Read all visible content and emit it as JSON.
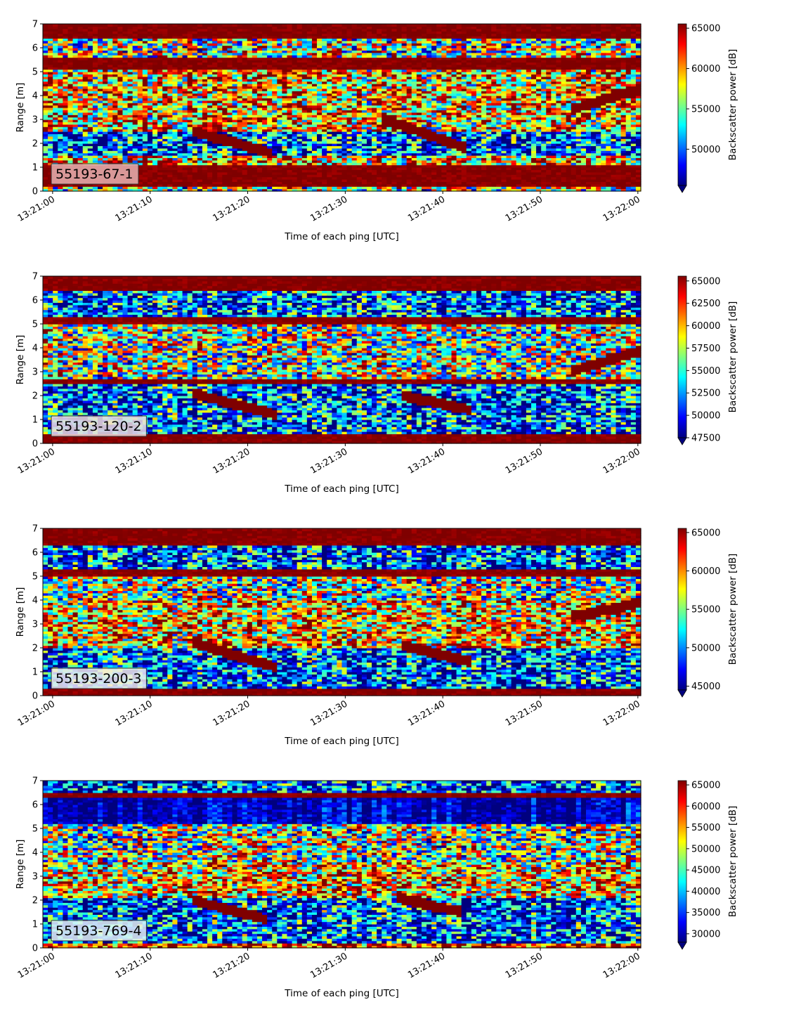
{
  "colorscale": {
    "name": "jet",
    "stops": [
      "#00007f",
      "#0000ff",
      "#007fff",
      "#00ffff",
      "#7fff7f",
      "#ffff00",
      "#ff7f00",
      "#ff0000",
      "#7f0000"
    ]
  },
  "inset_box_color": "#f0b4b4",
  "chart_data": [
    {
      "type": "heatmap",
      "label": "55193-67-1",
      "xlabel": "Time of each ping [UTC]",
      "ylabel": "Range [m]",
      "colorbar_label": "Backscatter power [dB]",
      "xticks": [
        "13:21:00",
        "13:21:10",
        "13:21:20",
        "13:21:30",
        "13:21:40",
        "13:21:50",
        "13:22:00"
      ],
      "x_range_seconds": [
        -1,
        60.3
      ],
      "yticks": [
        "0",
        "1",
        "2",
        "3",
        "4",
        "5",
        "6",
        "7"
      ],
      "ylim": [
        0,
        7
      ],
      "colorbar_ticks": [
        "50000",
        "55000",
        "60000",
        "65000"
      ],
      "clim": [
        45500,
        65535
      ],
      "inset_color": "#e8b3b3",
      "bands": [
        {
          "range": [
            0,
            0.22
          ],
          "level": "mid"
        },
        {
          "range": [
            0.22,
            1.1
          ],
          "level": "max"
        },
        {
          "range": [
            1.1,
            1.5
          ],
          "level": "mid-high"
        },
        {
          "range": [
            1.5,
            2.5
          ],
          "level": "low"
        },
        {
          "range": [
            2.5,
            5.1
          ],
          "level": "mid-high"
        },
        {
          "range": [
            5.1,
            5.6
          ],
          "level": "max"
        },
        {
          "range": [
            5.6,
            6.4
          ],
          "level": "mid"
        },
        {
          "range": [
            6.4,
            7
          ],
          "level": "max"
        }
      ],
      "tracks": [
        {
          "t": [
            14.5,
            22.5
          ],
          "range": [
            2.5,
            1.6
          ]
        },
        {
          "t": [
            33.5,
            42.5
          ],
          "range": [
            3.1,
            1.8
          ]
        },
        {
          "t": [
            53,
            60.3
          ],
          "range": [
            3.4,
            4.3
          ]
        }
      ]
    },
    {
      "type": "heatmap",
      "label": "55193-120-2",
      "xlabel": "Time of each ping [UTC]",
      "ylabel": "Range [m]",
      "colorbar_label": "Backscatter power [dB]",
      "xticks": [
        "13:21:00",
        "13:21:10",
        "13:21:20",
        "13:21:30",
        "13:21:40",
        "13:21:50",
        "13:22:00"
      ],
      "x_range_seconds": [
        -1,
        60.3
      ],
      "yticks": [
        "0",
        "1",
        "2",
        "3",
        "4",
        "5",
        "6",
        "7"
      ],
      "ylim": [
        0,
        7
      ],
      "colorbar_ticks": [
        "47500",
        "50000",
        "52500",
        "55000",
        "57500",
        "60000",
        "62500",
        "65000"
      ],
      "clim": [
        47500,
        65535
      ],
      "inset_color": "#eedede",
      "bands": [
        {
          "range": [
            0,
            0.4
          ],
          "level": "max"
        },
        {
          "range": [
            0.4,
            2.5
          ],
          "level": "low"
        },
        {
          "range": [
            2.5,
            2.75
          ],
          "level": "max"
        },
        {
          "range": [
            2.75,
            5.0
          ],
          "level": "mid"
        },
        {
          "range": [
            5.0,
            5.3
          ],
          "level": "max"
        },
        {
          "range": [
            5.3,
            6.4
          ],
          "level": "low"
        },
        {
          "range": [
            6.4,
            7
          ],
          "level": "max"
        }
      ],
      "tracks": [
        {
          "t": [
            14.5,
            23
          ],
          "range": [
            2.1,
            1.2
          ]
        },
        {
          "t": [
            36,
            43
          ],
          "range": [
            2.0,
            1.4
          ]
        },
        {
          "t": [
            53,
            60.3
          ],
          "range": [
            3.0,
            3.9
          ]
        }
      ]
    },
    {
      "type": "heatmap",
      "label": "55193-200-3",
      "xlabel": "Time of each ping [UTC]",
      "ylabel": "Range [m]",
      "colorbar_label": "Backscatter power [dB]",
      "xticks": [
        "13:21:00",
        "13:21:10",
        "13:21:20",
        "13:21:30",
        "13:21:40",
        "13:21:50",
        "13:22:00"
      ],
      "x_range_seconds": [
        -1,
        60.3
      ],
      "yticks": [
        "0",
        "1",
        "2",
        "3",
        "4",
        "5",
        "6",
        "7"
      ],
      "ylim": [
        0,
        7
      ],
      "colorbar_ticks": [
        "45000",
        "50000",
        "55000",
        "60000",
        "65000"
      ],
      "clim": [
        44500,
        65535
      ],
      "inset_color": "#f0ecec",
      "bands": [
        {
          "range": [
            0,
            0.3
          ],
          "level": "max"
        },
        {
          "range": [
            0.3,
            2.0
          ],
          "level": "low"
        },
        {
          "range": [
            2.0,
            4.0
          ],
          "level": "mid-high"
        },
        {
          "range": [
            4.0,
            5.0
          ],
          "level": "mid"
        },
        {
          "range": [
            5.0,
            5.3
          ],
          "level": "max"
        },
        {
          "range": [
            5.3,
            6.3
          ],
          "level": "low"
        },
        {
          "range": [
            6.3,
            7
          ],
          "level": "max"
        }
      ],
      "tracks": [
        {
          "t": [
            14.5,
            23
          ],
          "range": [
            2.2,
            1.2
          ]
        },
        {
          "t": [
            36,
            43
          ],
          "range": [
            2.1,
            1.4
          ]
        },
        {
          "t": [
            53,
            60.3
          ],
          "range": [
            3.3,
            3.9
          ]
        }
      ]
    },
    {
      "type": "heatmap",
      "label": "55193-769-4",
      "xlabel": "Time of each ping [UTC]",
      "ylabel": "Range [m]",
      "colorbar_label": "Backscatter power [dB]",
      "xticks": [
        "13:21:00",
        "13:21:10",
        "13:21:20",
        "13:21:30",
        "13:21:40",
        "13:21:50",
        "13:22:00"
      ],
      "x_range_seconds": [
        -1,
        60.3
      ],
      "yticks": [
        "0",
        "1",
        "2",
        "3",
        "4",
        "5",
        "6",
        "7"
      ],
      "ylim": [
        0,
        7
      ],
      "colorbar_ticks": [
        "30000",
        "35000",
        "40000",
        "45000",
        "50000",
        "55000",
        "60000",
        "65000"
      ],
      "clim": [
        28000,
        66000
      ],
      "inset_color": "#e4f4f4",
      "bands": [
        {
          "range": [
            0,
            0.25
          ],
          "level": "high"
        },
        {
          "range": [
            0.25,
            2.1
          ],
          "level": "low"
        },
        {
          "range": [
            2.1,
            3.6
          ],
          "level": "mid-high"
        },
        {
          "range": [
            3.6,
            5.2
          ],
          "level": "mid"
        },
        {
          "range": [
            5.2,
            6.3
          ],
          "level": "very-low"
        },
        {
          "range": [
            6.3,
            6.55
          ],
          "level": "max"
        },
        {
          "range": [
            6.55,
            7
          ],
          "level": "low"
        }
      ],
      "tracks": [
        {
          "t": [
            14.5,
            22
          ],
          "range": [
            2.0,
            1.2
          ]
        },
        {
          "t": [
            35.5,
            42
          ],
          "range": [
            2.1,
            1.5
          ]
        }
      ]
    }
  ]
}
